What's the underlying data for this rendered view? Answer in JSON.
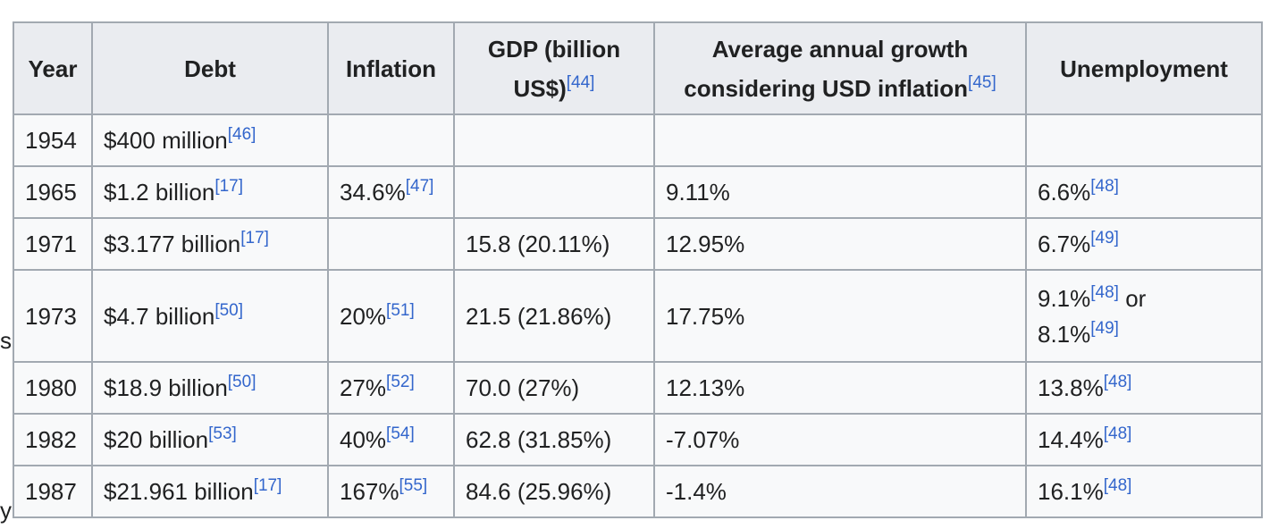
{
  "table": {
    "headers": [
      {
        "text": "Year",
        "ref": ""
      },
      {
        "text": "Debt",
        "ref": ""
      },
      {
        "text": "Inflation",
        "ref": ""
      },
      {
        "text": "GDP (billion US$)",
        "ref": "[44]"
      },
      {
        "text": "Average annual growth considering USD inflation",
        "ref": "[45]"
      },
      {
        "text": "Unemployment",
        "ref": ""
      }
    ],
    "rows": [
      {
        "year": "1954",
        "debt": "$400 million",
        "debt_ref": "[46]",
        "inflation": "",
        "inflation_ref": "",
        "gdp": "",
        "growth": "",
        "unemp": "",
        "unemp_ref": "",
        "unemp_or": "",
        "unemp2": "",
        "unemp2_ref": ""
      },
      {
        "year": "1965",
        "debt": "$1.2 billion",
        "debt_ref": "[17]",
        "inflation": "34.6%",
        "inflation_ref": "[47]",
        "gdp": "",
        "growth": "9.11%",
        "unemp": "6.6%",
        "unemp_ref": "[48]",
        "unemp_or": "",
        "unemp2": "",
        "unemp2_ref": ""
      },
      {
        "year": "1971",
        "debt": "$3.177 billion",
        "debt_ref": "[17]",
        "inflation": "",
        "inflation_ref": "",
        "gdp": "15.8 (20.11%)",
        "growth": "12.95%",
        "unemp": "6.7%",
        "unemp_ref": "[49]",
        "unemp_or": "",
        "unemp2": "",
        "unemp2_ref": ""
      },
      {
        "year": "1973",
        "debt": "$4.7 billion",
        "debt_ref": "[50]",
        "inflation": "20%",
        "inflation_ref": "[51]",
        "gdp": "21.5 (21.86%)",
        "growth": "17.75%",
        "unemp": "9.1%",
        "unemp_ref": "[48]",
        "unemp_or": " or",
        "unemp2": "8.1%",
        "unemp2_ref": "[49]"
      },
      {
        "year": "1980",
        "debt": "$18.9 billion",
        "debt_ref": "[50]",
        "inflation": "27%",
        "inflation_ref": "[52]",
        "gdp": "70.0 (27%)",
        "growth": "12.13%",
        "unemp": "13.8%",
        "unemp_ref": "[48]",
        "unemp_or": "",
        "unemp2": "",
        "unemp2_ref": ""
      },
      {
        "year": "1982",
        "debt": "$20 billion",
        "debt_ref": "[53]",
        "inflation": "40%",
        "inflation_ref": "[54]",
        "gdp": "62.8 (31.85%)",
        "growth": "-7.07%",
        "unemp": "14.4%",
        "unemp_ref": "[48]",
        "unemp_or": "",
        "unemp2": "",
        "unemp2_ref": ""
      },
      {
        "year": "1987",
        "debt": "$21.961 billion",
        "debt_ref": "[17]",
        "inflation": "167%",
        "inflation_ref": "[55]",
        "gdp": "84.6 (25.96%)",
        "growth": "-1.4%",
        "unemp": "16.1%",
        "unemp_ref": "[48]",
        "unemp_or": "",
        "unemp2": "",
        "unemp2_ref": ""
      }
    ]
  },
  "edge_text": {
    "s": "s",
    "y": "y"
  }
}
